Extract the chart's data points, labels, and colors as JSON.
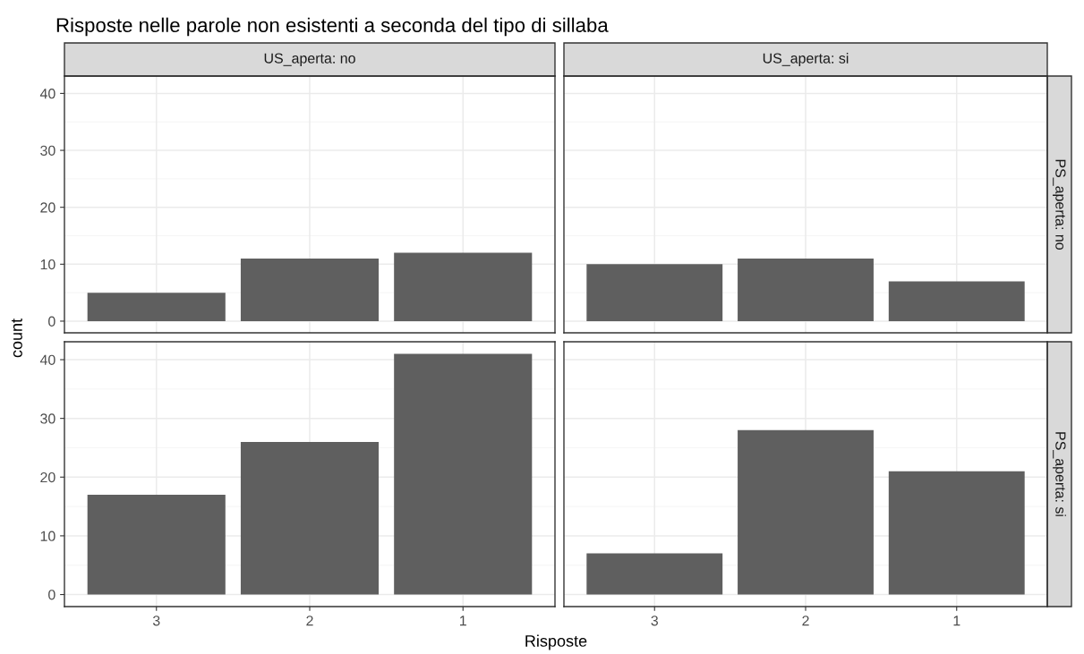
{
  "chart_data": [
    {
      "type": "bar",
      "title": "Risposte nelle parole non esistenti a seconda del tipo di sillaba",
      "subtitle": "US_aperta: no",
      "ylabel": "count",
      "categories": [
        "3",
        "2",
        "1"
      ],
      "values": [
        5,
        11,
        12
      ],
      "color": "#5f5f5f",
      "ylim": [
        -2.05,
        43.05
      ],
      "yticks": [
        0,
        10,
        20,
        30,
        40
      ],
      "grid": true,
      "tick_labels": "y"
    },
    {
      "type": "bar",
      "subtitle": "US_aperta: si",
      "annotations": [
        "PS_aperta: no"
      ],
      "categories": [
        "3",
        "2",
        "1"
      ],
      "values": [
        10,
        11,
        7
      ],
      "color": "#5f5f5f",
      "ylim": [
        -2.05,
        43.05
      ],
      "yticks": [
        0,
        10,
        20,
        30,
        40
      ],
      "grid": true,
      "tick_labels": false
    },
    {
      "type": "bar",
      "xlabel": "Risposte",
      "categories": [
        "3",
        "2",
        "1"
      ],
      "values": [
        17,
        26,
        41
      ],
      "color": "#5f5f5f",
      "ylim": [
        -2.05,
        43.05
      ],
      "yticks": [
        0,
        10,
        20,
        30,
        40
      ],
      "grid": true
    },
    {
      "type": "bar",
      "annotations": [
        "PS_aperta: si"
      ],
      "categories": [
        "3",
        "2",
        "1"
      ],
      "values": [
        7,
        28,
        21
      ],
      "color": "#5f5f5f",
      "ylim": [
        -2.05,
        43.05
      ],
      "yticks": [
        0,
        10,
        20,
        30,
        40
      ],
      "grid": true,
      "tick_labels": "x"
    }
  ]
}
